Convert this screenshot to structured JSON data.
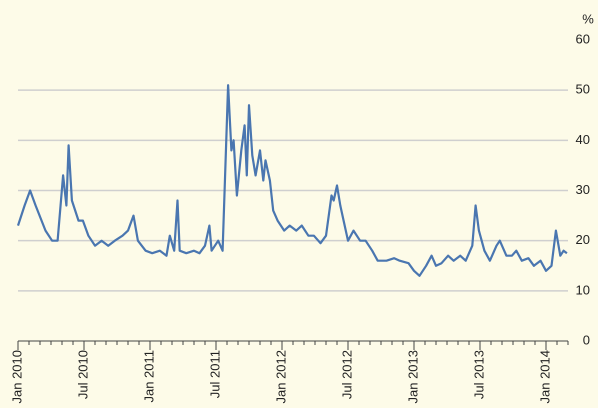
{
  "chart_data": {
    "type": "line",
    "unit": "%",
    "x": [
      0,
      0.6,
      1.1,
      1.6,
      2.5,
      3.1,
      3.6,
      4.1,
      4.4,
      4.6,
      4.9,
      5.5,
      5.9,
      6.4,
      7,
      7.6,
      8.2,
      8.8,
      9.5,
      10,
      10.5,
      10.9,
      11.6,
      12.2,
      12.9,
      13.5,
      13.8,
      14.2,
      14.5,
      14.7,
      15.3,
      16,
      16.5,
      17,
      17.4,
      17.6,
      18.2,
      18.6,
      19.1,
      19.4,
      19.6,
      19.9,
      20.3,
      20.6,
      20.8,
      21,
      21.3,
      21.6,
      22,
      22.3,
      22.5,
      22.9,
      23.2,
      23.6,
      24.2,
      24.7,
      25.3,
      25.8,
      26.4,
      26.9,
      27.5,
      28,
      28.5,
      28.7,
      29,
      29.3,
      29.6,
      30,
      30.5,
      31.1,
      31.6,
      32.2,
      32.7,
      33.5,
      34.2,
      34.7,
      35.5,
      36,
      36.5,
      37.1,
      37.6,
      38,
      38.5,
      39.1,
      39.6,
      40.2,
      40.7,
      41.3,
      41.6,
      41.9,
      42.4,
      42.9,
      43.5,
      43.8,
      44.4,
      44.9,
      45.3,
      45.8,
      46.4,
      46.9,
      47.5,
      48,
      48.5,
      48.9,
      49.3,
      49.6,
      49.9
    ],
    "values": [
      23,
      27,
      30,
      27,
      22,
      20,
      20,
      33,
      27,
      39,
      28,
      24,
      24,
      21,
      19,
      20,
      19,
      20,
      21,
      22,
      25,
      20,
      18,
      17.5,
      18,
      17,
      21,
      18,
      28,
      18,
      17.5,
      18,
      17.5,
      19,
      23,
      18,
      20,
      18,
      51,
      38,
      40,
      29,
      38,
      43,
      33,
      47,
      37,
      33,
      38,
      32,
      36,
      32,
      26,
      24,
      22,
      23,
      22,
      23,
      21,
      21,
      19.5,
      21,
      29,
      28,
      31,
      27,
      24,
      20,
      22,
      20,
      20,
      18,
      16,
      16,
      16.5,
      16,
      15.5,
      14,
      13,
      15,
      17,
      15,
      15.5,
      17,
      16,
      17,
      16,
      19,
      27,
      22,
      18,
      16,
      19,
      20,
      17,
      17,
      18,
      16,
      16.5,
      15,
      16,
      14,
      15,
      22,
      17,
      18,
      17.5
    ],
    "color": "#4a76b0",
    "xlim": [
      0,
      50
    ],
    "xticks": [
      {
        "value": 0,
        "label": "Jan 2010"
      },
      {
        "value": 6,
        "label": "Jul 2010"
      },
      {
        "value": 12,
        "label": "Jan 2011"
      },
      {
        "value": 18,
        "label": "Jul 2011"
      },
      {
        "value": 24,
        "label": "Jan 2012"
      },
      {
        "value": 30,
        "label": "Jul 2012"
      },
      {
        "value": 36,
        "label": "Jan 2013"
      },
      {
        "value": 42,
        "label": "Jul 2013"
      },
      {
        "value": 48,
        "label": "Jan 2014"
      }
    ],
    "ylim": [
      0,
      60
    ],
    "yticks": [
      0,
      10,
      20,
      30,
      40,
      50,
      60
    ],
    "grid": true
  }
}
